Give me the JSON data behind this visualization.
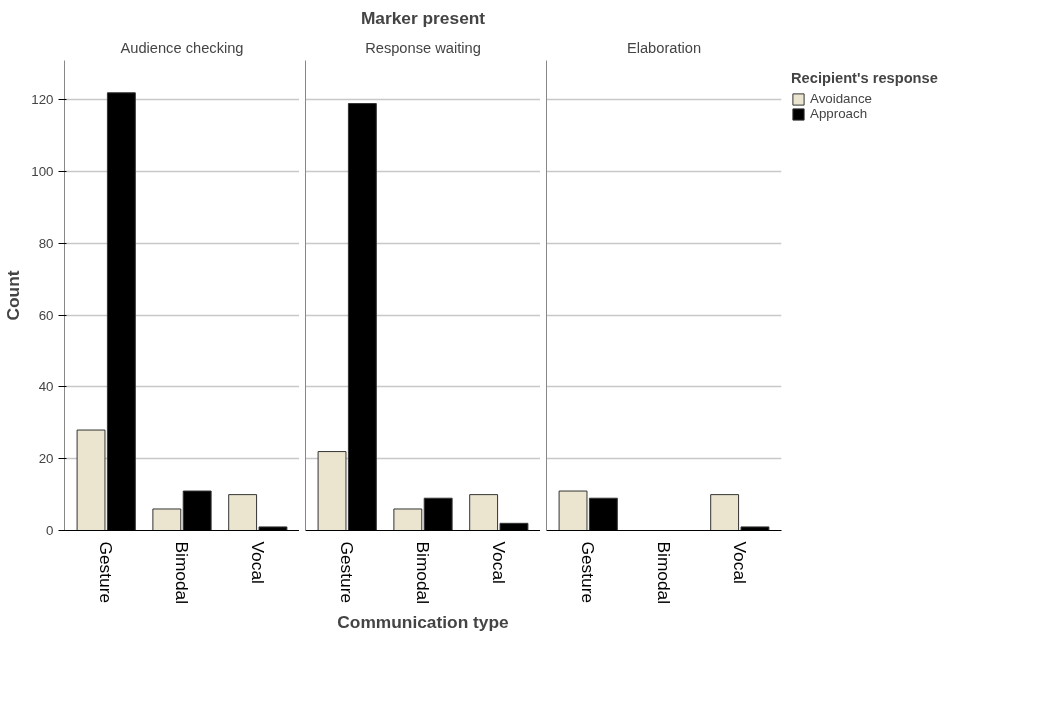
{
  "chart_data": [
    {
      "type": "bar",
      "title": "Audience checking",
      "ylabel": "Count",
      "categories": [
        "Gesture",
        "Bimodal",
        "Vocal"
      ],
      "series": [
        {
          "color": "#ebe5d0",
          "values": [
            28,
            6,
            10
          ]
        },
        {
          "color": "#000000",
          "values": [
            122,
            11,
            1
          ]
        }
      ],
      "ylim": [
        0,
        131
      ],
      "yticks": [
        0,
        20,
        40,
        60,
        80,
        100,
        120
      ],
      "grid": "y"
    },
    {
      "type": "bar",
      "title": "Response waiting",
      "annotations": [
        "Marker present"
      ],
      "xlabel": "Communication type",
      "categories": [
        "Gesture",
        "Bimodal",
        "Vocal"
      ],
      "series": [
        {
          "color": "#ebe5d0",
          "values": [
            22,
            6,
            10
          ]
        },
        {
          "color": "#000000",
          "values": [
            119,
            9,
            2
          ]
        }
      ],
      "ylim": [
        0,
        131
      ],
      "yticks": [
        0,
        20,
        40,
        60,
        80,
        100,
        120
      ],
      "grid": "y",
      "tick_labels": "x"
    },
    {
      "type": "bar",
      "title": "Elaboration",
      "categories": [
        "Gesture",
        "Bimodal",
        "Vocal"
      ],
      "series": [
        {
          "name": "Avoidance",
          "color": "#ebe5d0",
          "values": [
            11,
            0,
            10
          ]
        },
        {
          "name": "Approach",
          "color": "#000000",
          "values": [
            9,
            0,
            1
          ]
        }
      ],
      "ylim": [
        0,
        131
      ],
      "yticks": [
        0,
        20,
        40,
        60,
        80,
        100,
        120
      ],
      "grid": "y",
      "tick_labels": "x",
      "legend": "top right",
      "legend_title": "Recipient's response"
    }
  ]
}
